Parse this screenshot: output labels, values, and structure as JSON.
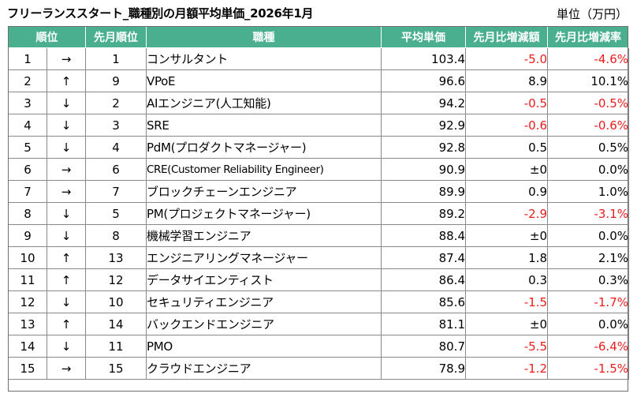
{
  "title": "フリーランススタート_職種別の月額平均単価_2026年1月",
  "unit_label": "単位（万円）",
  "headers": {
    "rank": "順位",
    "last_rank": "先月順位",
    "job": "職種",
    "avg_price": "平均単価",
    "diff_amount": "先月比増減額",
    "diff_rate": "先月比増減率"
  },
  "rows": [
    {
      "rank": "1",
      "arrow": "→",
      "last_rank": "1",
      "job": "コンサルタント",
      "avg_price": "103.4",
      "diff_amount": "-5.0",
      "diff_rate": "-4.6%"
    },
    {
      "rank": "2",
      "arrow": "↑",
      "last_rank": "9",
      "job": "VPoE",
      "avg_price": "96.6",
      "diff_amount": "8.9",
      "diff_rate": "10.1%"
    },
    {
      "rank": "3",
      "arrow": "↓",
      "last_rank": "2",
      "job": "AIエンジニア(人工知能)",
      "avg_price": "94.2",
      "diff_amount": "-0.5",
      "diff_rate": "-0.5%"
    },
    {
      "rank": "4",
      "arrow": "↓",
      "last_rank": "3",
      "job": "SRE",
      "avg_price": "92.9",
      "diff_amount": "-0.6",
      "diff_rate": "-0.6%"
    },
    {
      "rank": "5",
      "arrow": "↓",
      "last_rank": "4",
      "job": "PdM(プロダクトマネージャー)",
      "avg_price": "92.8",
      "diff_amount": "0.5",
      "diff_rate": "0.5%"
    },
    {
      "rank": "6",
      "arrow": "→",
      "last_rank": "6",
      "job": "CRE(Customer Reliability Engineer)",
      "avg_price": "90.9",
      "diff_amount": "±0",
      "diff_rate": "0.0%"
    },
    {
      "rank": "7",
      "arrow": "→",
      "last_rank": "7",
      "job": "ブロックチェーンエンジニア",
      "avg_price": "89.9",
      "diff_amount": "0.9",
      "diff_rate": "1.0%"
    },
    {
      "rank": "8",
      "arrow": "↓",
      "last_rank": "5",
      "job": "PM(プロジェクトマネージャー)",
      "avg_price": "89.2",
      "diff_amount": "-2.9",
      "diff_rate": "-3.1%"
    },
    {
      "rank": "9",
      "arrow": "↓",
      "last_rank": "8",
      "job": "機械学習エンジニア",
      "avg_price": "88.4",
      "diff_amount": "±0",
      "diff_rate": "0.0%"
    },
    {
      "rank": "10",
      "arrow": "↑",
      "last_rank": "13",
      "job": "エンジニアリングマネージャー",
      "avg_price": "87.4",
      "diff_amount": "1.8",
      "diff_rate": "2.1%"
    },
    {
      "rank": "11",
      "arrow": "↑",
      "last_rank": "12",
      "job": "データサイエンティスト",
      "avg_price": "86.4",
      "diff_amount": "0.3",
      "diff_rate": "0.3%"
    },
    {
      "rank": "12",
      "arrow": "↓",
      "last_rank": "10",
      "job": "セキュリティエンジニア",
      "avg_price": "85.6",
      "diff_amount": "-1.5",
      "diff_rate": "-1.7%"
    },
    {
      "rank": "13",
      "arrow": "↑",
      "last_rank": "14",
      "job": "バックエンドエンジニア",
      "avg_price": "81.1",
      "diff_amount": "±0",
      "diff_rate": "0.0%"
    },
    {
      "rank": "14",
      "arrow": "↓",
      "last_rank": "11",
      "job": "PMO",
      "avg_price": "80.7",
      "diff_amount": "-5.5",
      "diff_rate": "-6.4%"
    },
    {
      "rank": "15",
      "arrow": "→",
      "last_rank": "15",
      "job": "クラウドエンジニア",
      "avg_price": "78.9",
      "diff_amount": "-1.2",
      "diff_rate": "-1.5%"
    }
  ],
  "colors": {
    "header_bg": "#4aaf8f",
    "header_text": "#ffffff",
    "negative_text": "#ee1c1c"
  }
}
